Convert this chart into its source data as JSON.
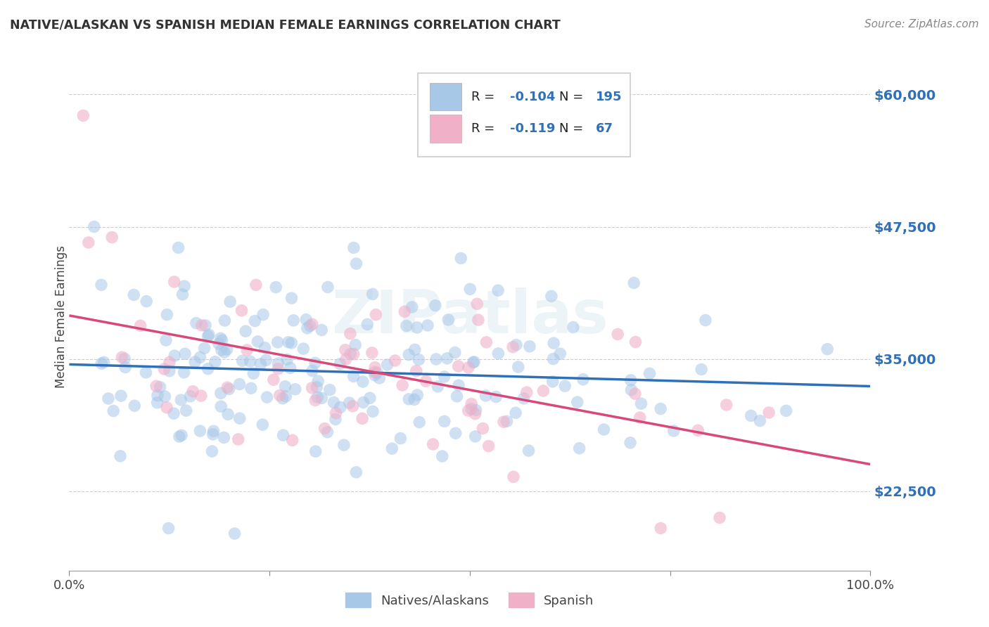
{
  "title": "NATIVE/ALASKAN VS SPANISH MEDIAN FEMALE EARNINGS CORRELATION CHART",
  "source": "Source: ZipAtlas.com",
  "ylabel": "Median Female Earnings",
  "yticks": [
    22500,
    35000,
    47500,
    60000
  ],
  "ytick_labels": [
    "$22,500",
    "$35,000",
    "$47,500",
    "$60,000"
  ],
  "ymin": 15000,
  "ymax": 63000,
  "xmin": 0.0,
  "xmax": 1.0,
  "legend_label1": "Natives/Alaskans",
  "legend_label2": "Spanish",
  "r1": -0.104,
  "n1": 195,
  "r2": -0.119,
  "n2": 67,
  "color_blue": "#a8c8e8",
  "color_pink": "#f0b0c8",
  "color_blue_line": "#3070b8",
  "color_pink_line": "#d84878",
  "color_blue_text": "#3070b8",
  "color_all_text": "#3070b8",
  "background": "#ffffff",
  "grid_color": "#cccccc",
  "watermark": "ZIPatlas",
  "title_color": "#333333",
  "source_color": "#888888"
}
